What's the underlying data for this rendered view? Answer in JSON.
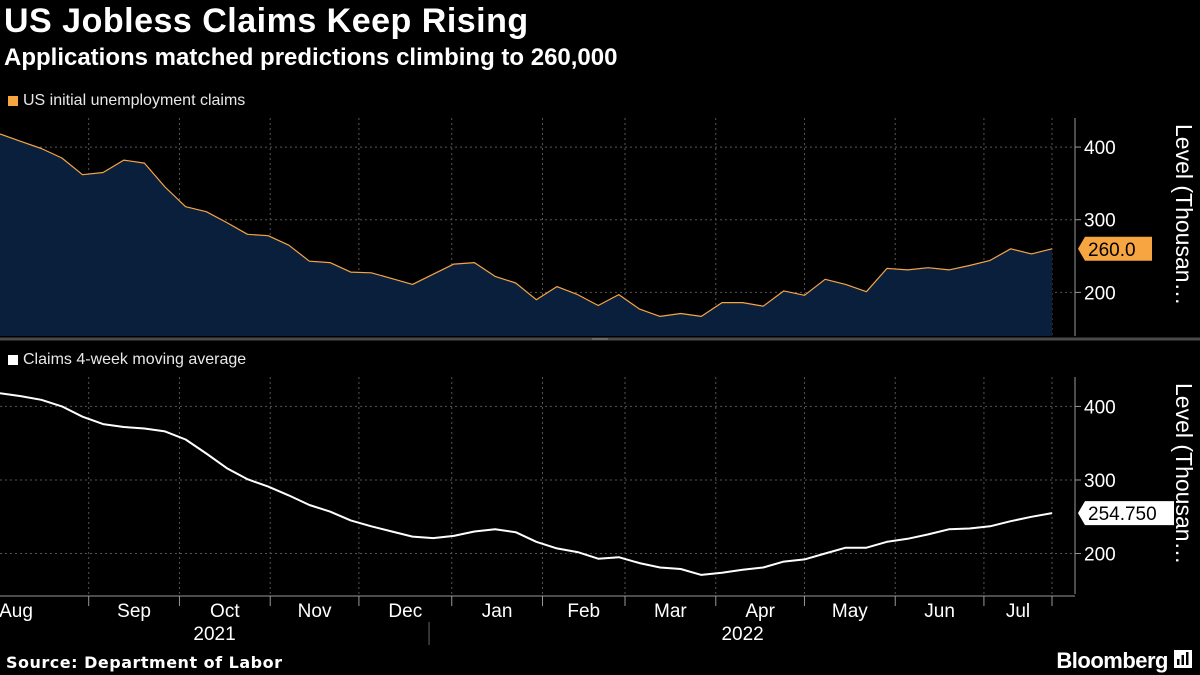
{
  "title": "US Jobless Claims Keep Rising",
  "subtitle": "Applications matched predictions climbing to 260,000",
  "source": "Source: Department of Labor",
  "brand": "Bloomberg",
  "colors": {
    "claims_line": "#f7a541",
    "claims_fill": "#0a1f3c",
    "average_line": "#ffffff",
    "grid": "#555555",
    "background": "#000000"
  },
  "chart_data": [
    {
      "type": "area",
      "legend": "US initial unemployment claims",
      "ylabel": "Level (Thousan…",
      "yticks": [
        200,
        300,
        400
      ],
      "ylim": [
        140,
        440
      ],
      "last_label": "260.0",
      "series": [
        {
          "name": "US initial unemployment claims",
          "values": [
            418,
            408,
            398,
            385,
            362,
            365,
            382,
            378,
            345,
            318,
            311,
            296,
            280,
            278,
            265,
            243,
            241,
            228,
            227,
            219,
            211,
            225,
            239,
            241,
            222,
            213,
            190,
            208,
            197,
            182,
            197,
            177,
            167,
            171,
            167,
            186,
            186,
            181,
            202,
            196,
            218,
            211,
            201,
            233,
            231,
            234,
            231,
            237,
            244,
            260,
            253,
            260
          ]
        }
      ]
    },
    {
      "type": "line",
      "legend": "Claims 4-week moving average",
      "ylabel": "Level (Thousan…",
      "yticks": [
        200,
        300,
        400
      ],
      "ylim": [
        145,
        440
      ],
      "last_label": "254.750",
      "series": [
        {
          "name": "Claims 4-week moving average",
          "values": [
            418,
            414,
            409,
            400,
            386,
            376,
            372,
            370,
            366,
            355,
            336,
            316,
            301,
            291,
            279,
            266,
            257,
            245,
            237,
            230,
            223,
            221,
            224,
            230,
            233,
            229,
            216,
            207,
            202,
            193,
            195,
            187,
            181,
            179,
            171,
            174,
            178,
            181,
            189,
            192,
            200,
            208,
            208,
            216,
            220,
            226,
            233,
            234,
            237,
            244,
            250,
            255
          ]
        }
      ]
    }
  ],
  "xaxis": {
    "months": [
      {
        "label": "Aug",
        "index": 0
      },
      {
        "label": "Sep",
        "index": 4.3
      },
      {
        "label": "Oct",
        "index": 8.7
      },
      {
        "label": "Nov",
        "index": 13.1
      },
      {
        "label": "Dec",
        "index": 17.4
      },
      {
        "label": "Jan",
        "index": 21.9
      },
      {
        "label": "Feb",
        "index": 26.3
      },
      {
        "label": "Mar",
        "index": 30.3
      },
      {
        "label": "Apr",
        "index": 34.7
      },
      {
        "label": "May",
        "index": 39.0
      },
      {
        "label": "Jun",
        "index": 43.4
      },
      {
        "label": "Jul",
        "index": 47.7
      }
    ],
    "years": [
      {
        "label": "2021",
        "index": 10.4
      },
      {
        "label": "2022",
        "index": 36.0
      }
    ],
    "year_divider_index": 20.8
  }
}
